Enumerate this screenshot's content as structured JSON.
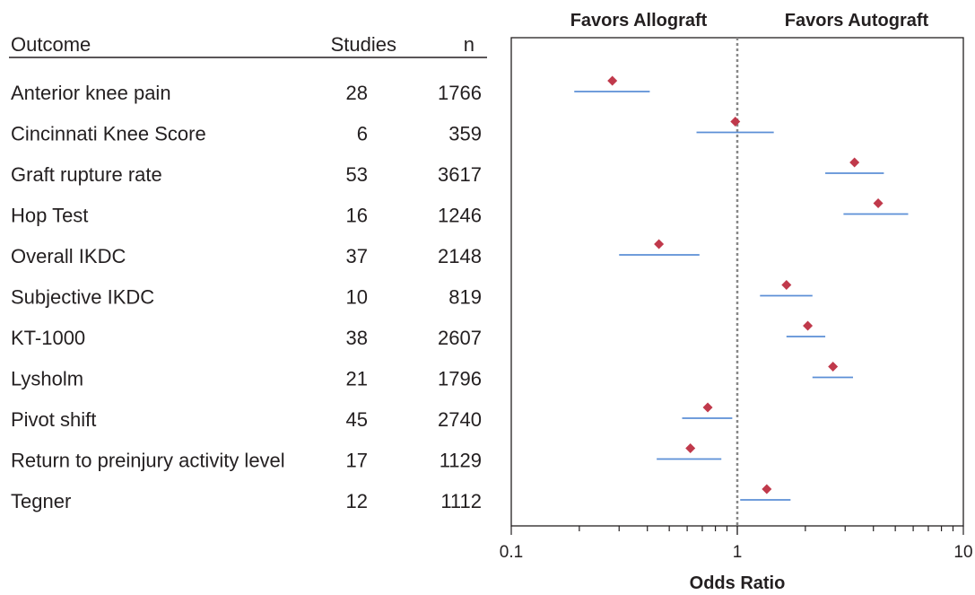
{
  "table": {
    "headers": {
      "outcome": "Outcome",
      "studies": "Studies",
      "n": "n"
    }
  },
  "chart_data": {
    "type": "forest",
    "top_labels": {
      "left": "Favors Allograft",
      "right": "Favors Autograft"
    },
    "xlabel": "Odds Ratio",
    "x_scale": "log",
    "xlim": [
      0.1,
      10
    ],
    "x_ticks": [
      "0.1",
      "1",
      "10"
    ],
    "reference_line": 1,
    "colors": {
      "point": "#c0394b",
      "ci": "#5b8fd6",
      "reference": "#888888",
      "axis": "#231f20"
    },
    "rows": [
      {
        "outcome": "Anterior knee pain",
        "studies": "28",
        "n": "1766",
        "or": 0.28,
        "ci": [
          0.19,
          0.41
        ]
      },
      {
        "outcome": "Cincinnati Knee Score",
        "studies": "6",
        "n": "359",
        "or": 0.98,
        "ci": [
          0.66,
          1.45
        ]
      },
      {
        "outcome": "Graft rupture rate",
        "studies": "53",
        "n": "3617",
        "or": 3.3,
        "ci": [
          2.45,
          4.45
        ]
      },
      {
        "outcome": "Hop Test",
        "studies": "16",
        "n": "1246",
        "or": 4.2,
        "ci": [
          2.95,
          5.7
        ]
      },
      {
        "outcome": "Overall IKDC",
        "studies": "37",
        "n": "2148",
        "or": 0.45,
        "ci": [
          0.3,
          0.68
        ]
      },
      {
        "outcome": "Subjective IKDC",
        "studies": "10",
        "n": "819",
        "or": 1.65,
        "ci": [
          1.26,
          2.15
        ]
      },
      {
        "outcome": "KT-1000",
        "studies": "38",
        "n": "2607",
        "or": 2.05,
        "ci": [
          1.65,
          2.45
        ]
      },
      {
        "outcome": "Lysholm",
        "studies": "21",
        "n": "1796",
        "or": 2.65,
        "ci": [
          2.15,
          3.25
        ]
      },
      {
        "outcome": "Pivot shift",
        "studies": "45",
        "n": "2740",
        "or": 0.74,
        "ci": [
          0.57,
          0.95
        ]
      },
      {
        "outcome": "Return to preinjury activity level",
        "studies": "17",
        "n": "1129",
        "or": 0.62,
        "ci": [
          0.44,
          0.85
        ]
      },
      {
        "outcome": "Tegner",
        "studies": "12",
        "n": "1112",
        "or": 1.35,
        "ci": [
          1.03,
          1.72
        ]
      }
    ]
  }
}
